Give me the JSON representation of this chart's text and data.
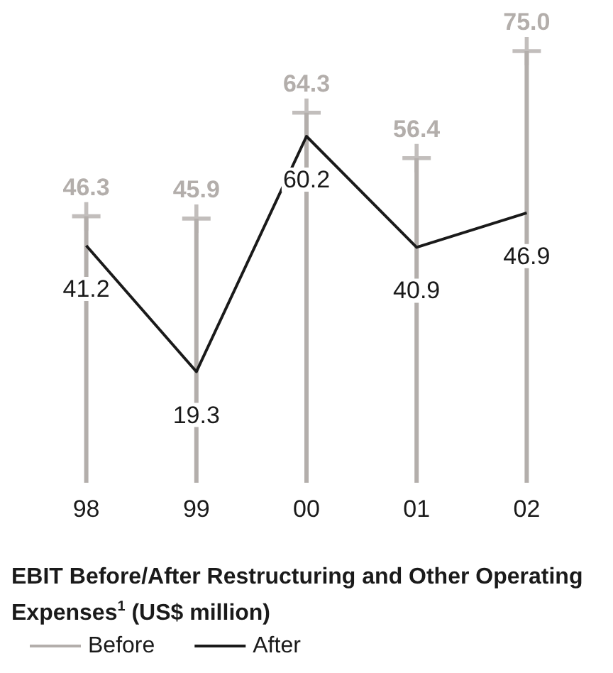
{
  "chart_data": {
    "type": "line",
    "title": "EBIT Before/After Restructuring and Other Operating Expenses$^{1}$ (US$ million)",
    "categories": [
      "98",
      "99",
      "00",
      "01",
      "02"
    ],
    "series": [
      {
        "name": "Before",
        "type": "bar",
        "color": "#b3aeab",
        "values": [
          46.3,
          45.9,
          64.3,
          56.4,
          75.0
        ],
        "value_labels": [
          "46.3",
          "45.9",
          "64.3",
          "56.4",
          "75.0"
        ]
      },
      {
        "type": "scatter",
        "color": "#b3aeab",
        "marker": "cross",
        "x": [
          "98",
          "99",
          "00",
          "01",
          "02"
        ],
        "values": [
          46.3,
          45.9,
          64.3,
          56.4,
          75.0
        ]
      },
      {
        "name": "After",
        "color": "#1a1a1a",
        "marker": "none",
        "line_style": "solid",
        "values": [
          41.2,
          19.3,
          60.2,
          40.9,
          46.9
        ],
        "value_labels": [
          "41.2",
          "19.3",
          "60.2",
          "40.9",
          "46.9"
        ]
      }
    ],
    "legend": "bottom left",
    "tick_labels": "x"
  }
}
